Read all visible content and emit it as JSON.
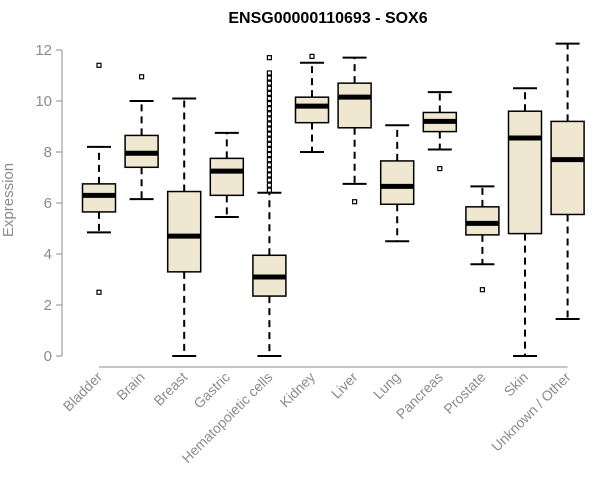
{
  "chart_data": {
    "type": "box",
    "title": "ENSG00000110693 - SOX6",
    "ylabel": "Expression",
    "xlabel": "",
    "ylim": [
      0,
      12.3
    ],
    "yticks": [
      0,
      2,
      4,
      6,
      8,
      10,
      12
    ],
    "grid": false,
    "legend": "none",
    "colors": {
      "box_fill": "#efe7d0",
      "box_stroke": "#000000",
      "median": "#000000",
      "axis": "#8c8c8c"
    },
    "categories": [
      "Bladder",
      "Brain",
      "Breast",
      "Gastric",
      "Hematopoietic cells",
      "Kidney",
      "Liver",
      "Lung",
      "Pancreas",
      "Prostate",
      "Skin",
      "Unknown / Other"
    ],
    "boxes": [
      {
        "category": "Bladder",
        "whisker_low": 4.85,
        "q1": 5.65,
        "median": 6.3,
        "q3": 6.75,
        "whisker_high": 8.2,
        "outliers": [
          2.5,
          11.4
        ]
      },
      {
        "category": "Brain",
        "whisker_low": 6.15,
        "q1": 7.4,
        "median": 7.95,
        "q3": 8.65,
        "whisker_high": 10.0,
        "outliers": [
          10.95
        ]
      },
      {
        "category": "Breast",
        "whisker_low": 0.0,
        "q1": 3.3,
        "median": 4.7,
        "q3": 6.45,
        "whisker_high": 10.1,
        "outliers": []
      },
      {
        "category": "Gastric",
        "whisker_low": 5.45,
        "q1": 6.3,
        "median": 7.25,
        "q3": 7.75,
        "whisker_high": 8.75,
        "outliers": []
      },
      {
        "category": "Hematopoietic cells",
        "whisker_low": 0.0,
        "q1": 2.35,
        "median": 3.1,
        "q3": 3.95,
        "whisker_high": 6.4,
        "outliers": [
          6.5,
          6.7,
          6.9,
          7.1,
          7.3,
          7.5,
          7.7,
          7.9,
          8.1,
          8.3,
          8.5,
          8.7,
          8.9,
          9.1,
          9.3,
          9.5,
          9.7,
          9.9,
          10.1,
          10.3,
          10.5,
          10.7,
          10.9,
          11.1,
          11.7
        ]
      },
      {
        "category": "Kidney",
        "whisker_low": 8.0,
        "q1": 9.15,
        "median": 9.8,
        "q3": 10.15,
        "whisker_high": 11.5,
        "outliers": [
          11.75
        ]
      },
      {
        "category": "Liver",
        "whisker_low": 6.75,
        "q1": 8.95,
        "median": 10.15,
        "q3": 10.7,
        "whisker_high": 11.7,
        "outliers": [
          6.05
        ]
      },
      {
        "category": "Lung",
        "whisker_low": 4.5,
        "q1": 5.95,
        "median": 6.65,
        "q3": 7.65,
        "whisker_high": 9.05,
        "outliers": []
      },
      {
        "category": "Pancreas",
        "whisker_low": 8.1,
        "q1": 8.8,
        "median": 9.2,
        "q3": 9.55,
        "whisker_high": 10.35,
        "outliers": [
          7.35
        ]
      },
      {
        "category": "Prostate",
        "whisker_low": 3.6,
        "q1": 4.75,
        "median": 5.2,
        "q3": 5.85,
        "whisker_high": 6.65,
        "outliers": [
          2.6
        ]
      },
      {
        "category": "Skin",
        "whisker_low": 0.0,
        "q1": 4.8,
        "median": 8.55,
        "q3": 9.6,
        "whisker_high": 10.5,
        "outliers": []
      },
      {
        "category": "Unknown / Other",
        "whisker_low": 1.45,
        "q1": 5.55,
        "median": 7.7,
        "q3": 9.2,
        "whisker_high": 12.25,
        "outliers": []
      }
    ]
  }
}
